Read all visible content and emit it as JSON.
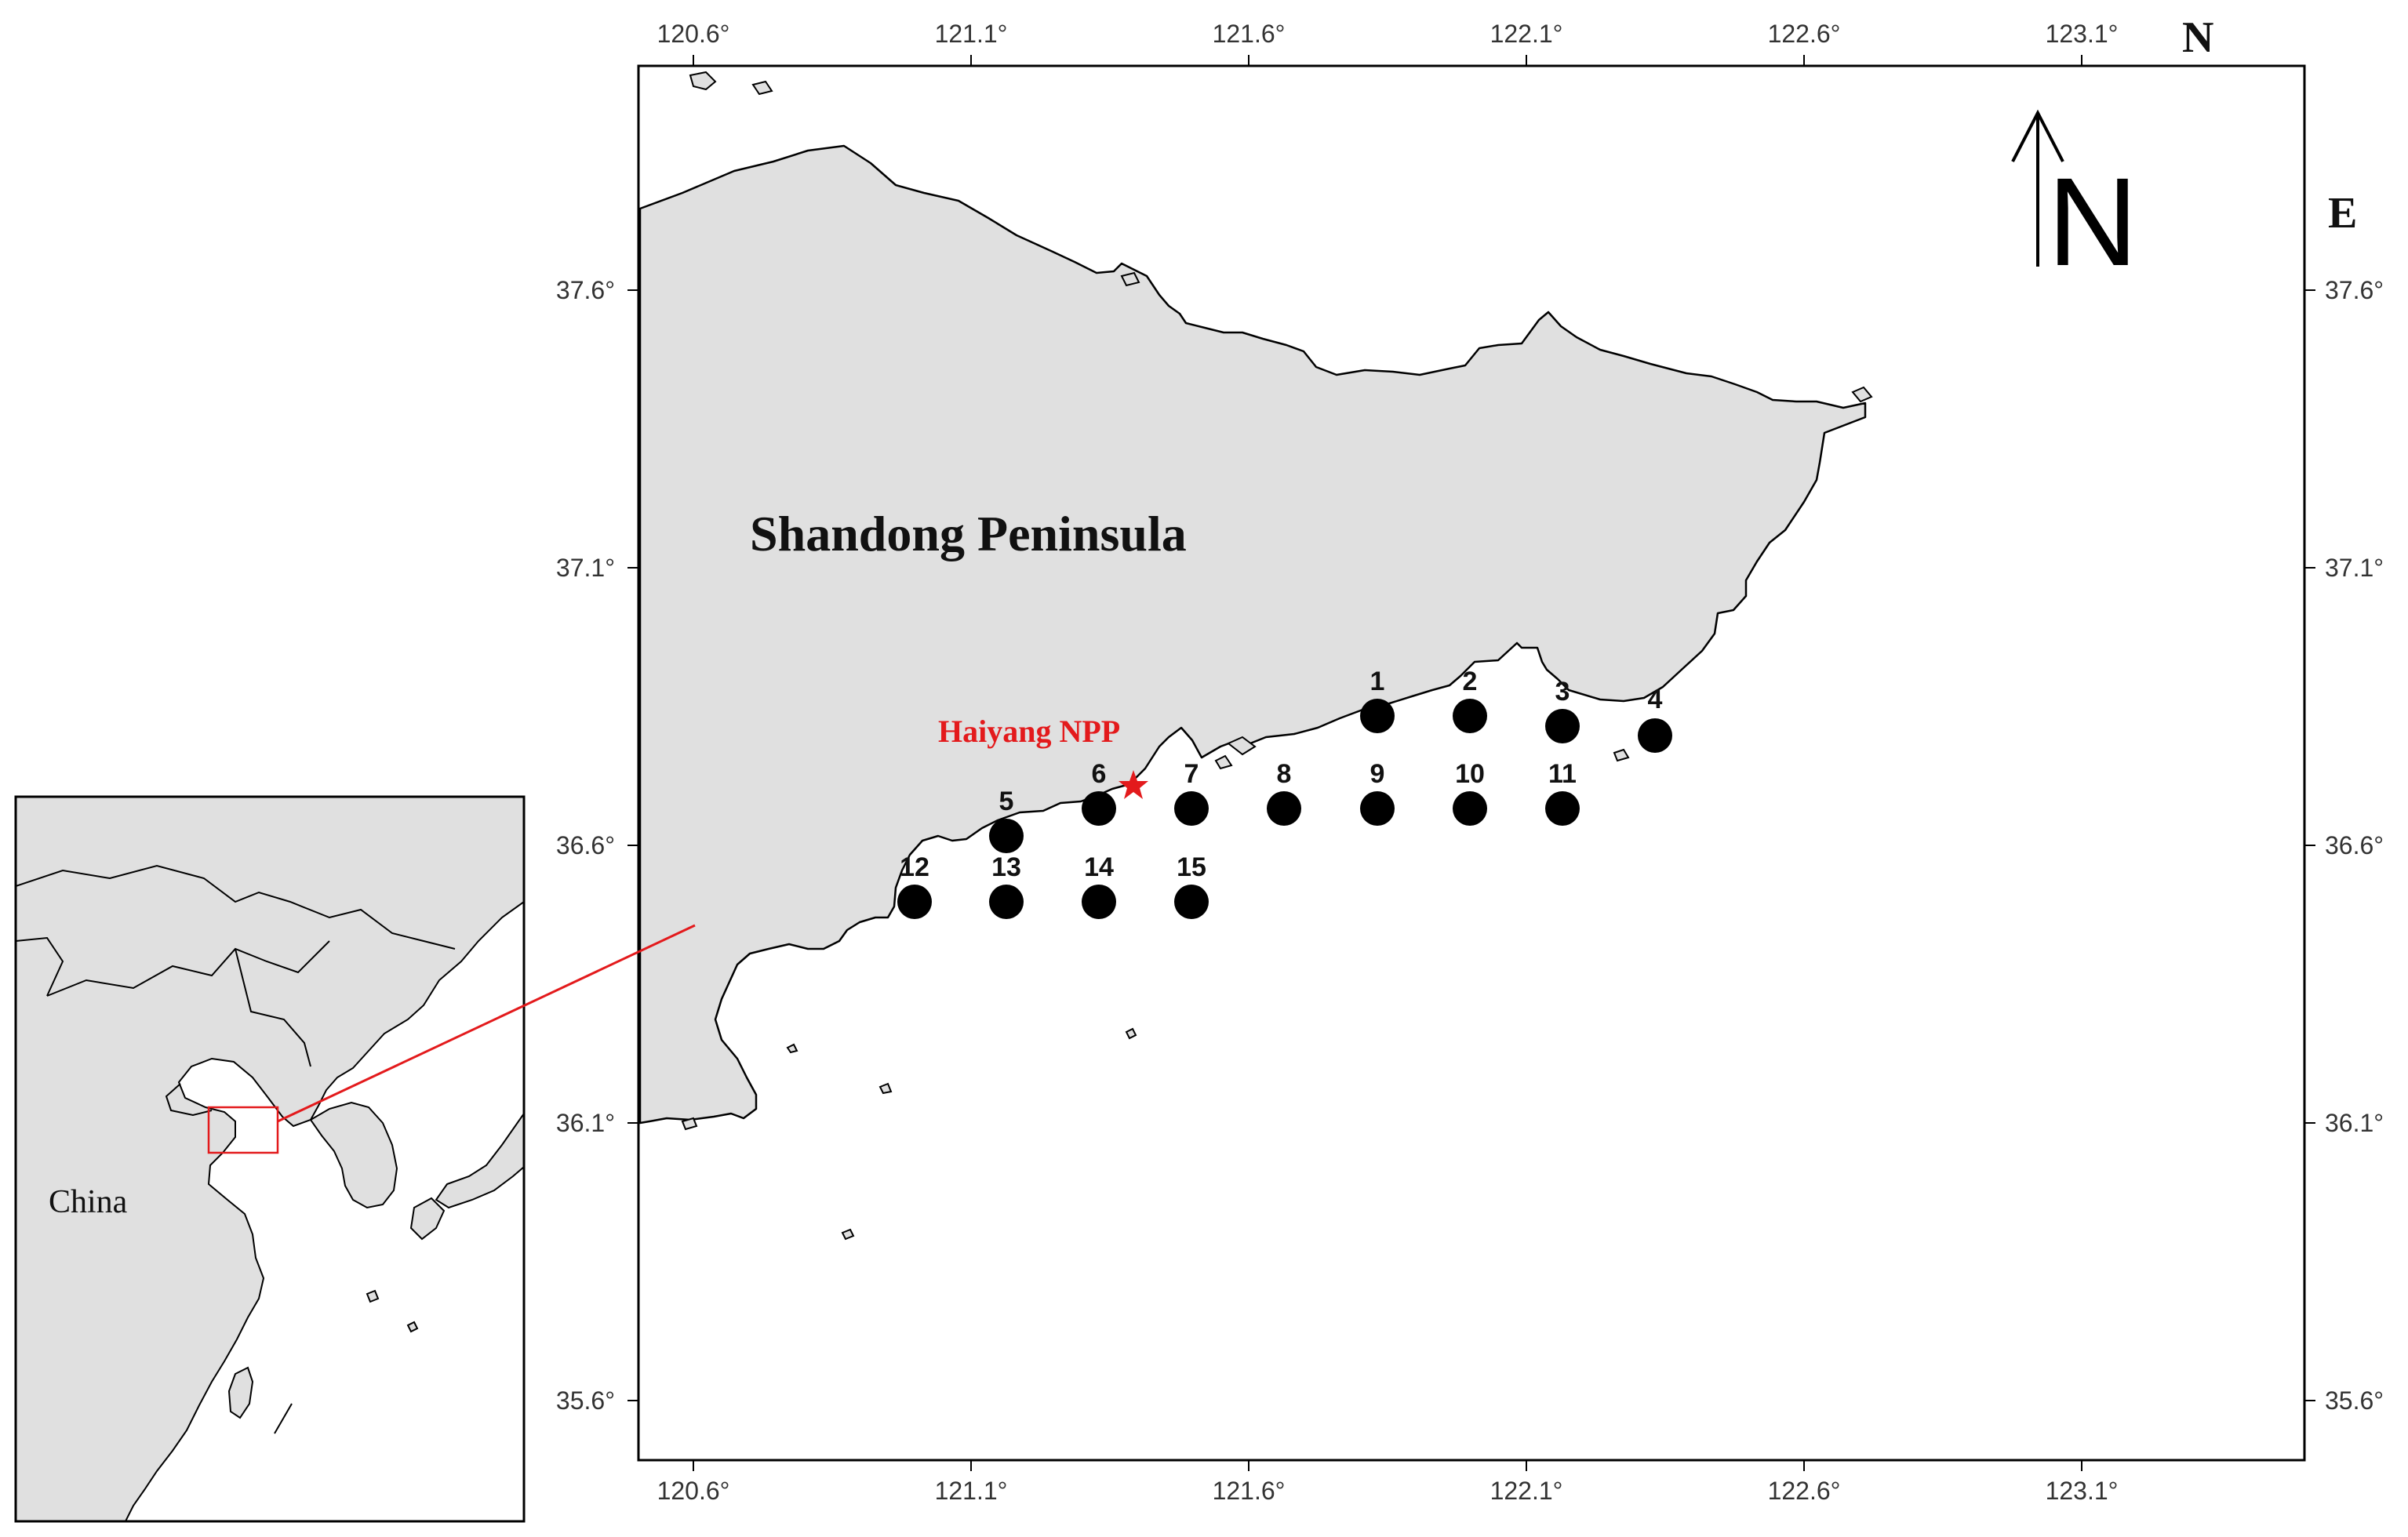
{
  "map": {
    "region_label": "Shandong Peninsula",
    "plant_label": "Haiyang NPP",
    "inset_country_label": "China",
    "corner_labels": {
      "north": "N",
      "east": "E"
    },
    "north_arrow_letter": "N",
    "lon_ticks": [
      "120.6°",
      "121.1°",
      "121.6°",
      "122.1°",
      "122.6°",
      "123.1°"
    ],
    "lat_ticks": [
      "37.6°",
      "37.1°",
      "36.6°",
      "36.1°",
      "35.6°"
    ],
    "land_color": "#e0e0e0",
    "station_color": "#000000",
    "plant_color": "#e31a1c",
    "stations": [
      {
        "id": "1"
      },
      {
        "id": "2"
      },
      {
        "id": "3"
      },
      {
        "id": "4"
      },
      {
        "id": "5"
      },
      {
        "id": "6"
      },
      {
        "id": "7"
      },
      {
        "id": "8"
      },
      {
        "id": "9"
      },
      {
        "id": "10"
      },
      {
        "id": "11"
      },
      {
        "id": "12"
      },
      {
        "id": "13"
      },
      {
        "id": "14"
      },
      {
        "id": "15"
      }
    ]
  }
}
